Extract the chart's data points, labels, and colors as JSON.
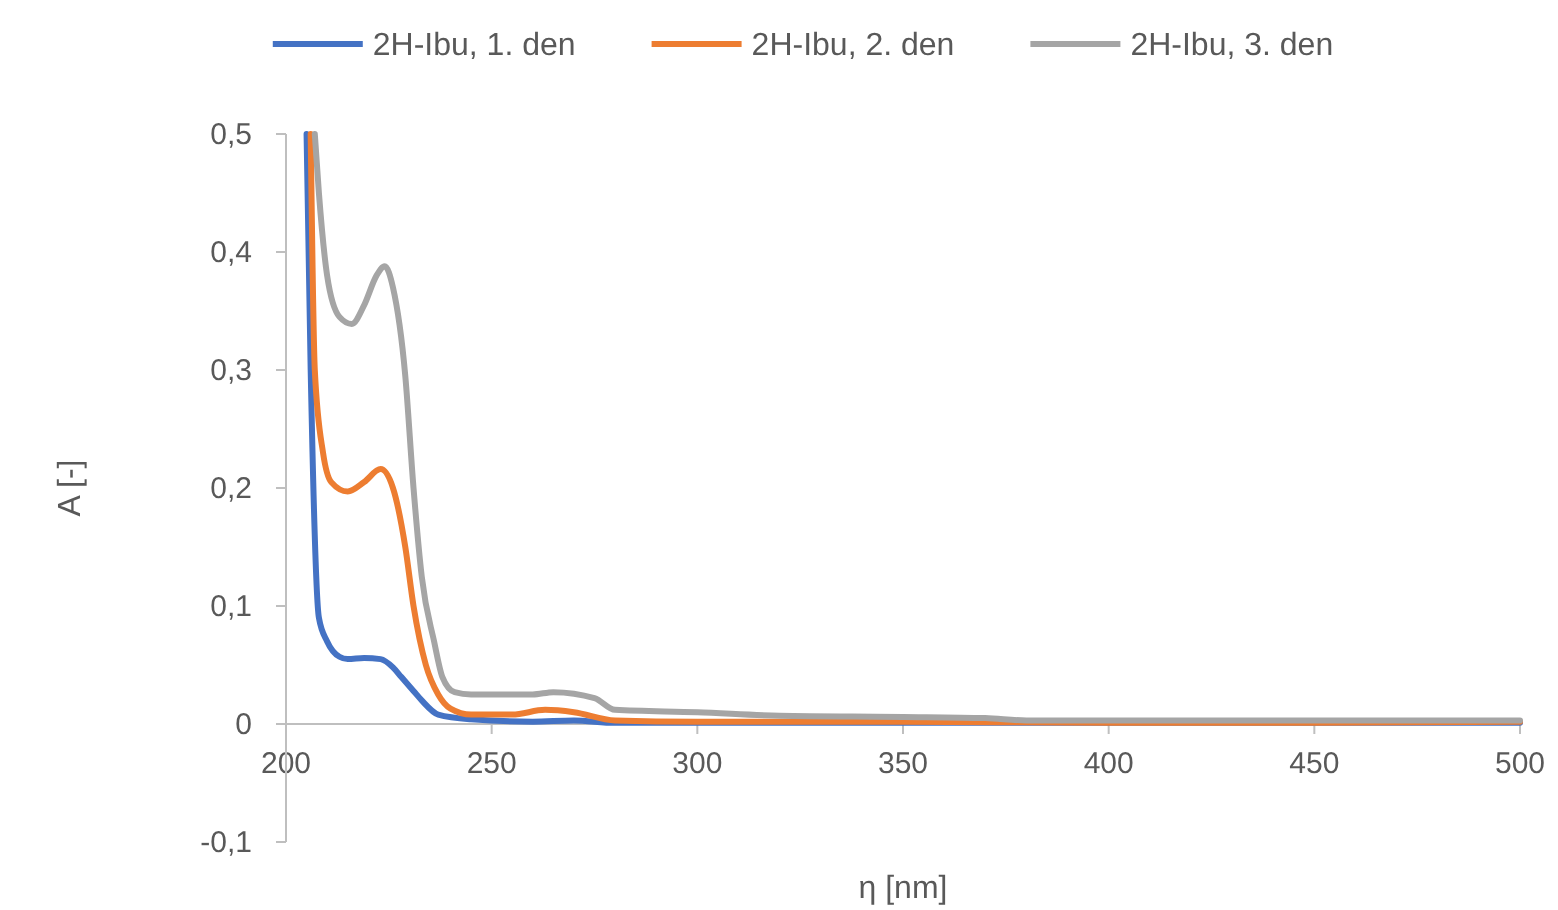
{
  "chart_data": {
    "type": "line",
    "xlabel": "η [nm]",
    "ylabel": "A [-]",
    "legend": "top",
    "grid": false,
    "marker": "none",
    "line_style": "solid",
    "xlim": [
      200,
      500
    ],
    "xticks": [
      200,
      250,
      300,
      350,
      400,
      450,
      500
    ],
    "ylim": [
      -0.1,
      0.5
    ],
    "yticks": [
      {
        "value": -0.1,
        "label": "-0,1"
      },
      {
        "value": 0,
        "label": "0"
      },
      {
        "value": 0.1,
        "label": "0,1"
      },
      {
        "value": 0.2,
        "label": "0,2"
      },
      {
        "value": 0.3,
        "label": "0,3"
      },
      {
        "value": 0.4,
        "label": "0,4"
      },
      {
        "value": 0.5,
        "label": "0,5"
      }
    ],
    "series": [
      {
        "name": "2H-Ibu, 1. den",
        "color": "#4472c4",
        "x": [
          205,
          206,
          208,
          210,
          213,
          215,
          219,
          223,
          226,
          228,
          231,
          233,
          237,
          245,
          260,
          270,
          280,
          300,
          350,
          400,
          450,
          500
        ],
        "values": [
          0.5,
          0.3,
          0.09,
          0.07,
          0.057,
          0.055,
          0.056,
          0.055,
          0.048,
          0.04,
          0.028,
          0.02,
          0.008,
          0.004,
          0.002,
          0.003,
          0.001,
          0.001,
          0.001,
          null,
          null,
          0.001
        ]
      },
      {
        "name": "2H-Ibu, 2. den",
        "color": "#ed7d31",
        "x": [
          206,
          207,
          209,
          211,
          215,
          219,
          223,
          226,
          229,
          231,
          234,
          237,
          240,
          245,
          255,
          263,
          270,
          280,
          300,
          350,
          400,
          450,
          500
        ],
        "values": [
          0.5,
          0.3,
          0.23,
          0.205,
          0.197,
          0.205,
          0.216,
          0.2,
          0.15,
          0.1,
          0.05,
          0.025,
          0.013,
          0.008,
          0.008,
          0.012,
          0.01,
          0.003,
          0.002,
          0.002,
          0.001,
          0.001,
          0.002
        ]
      },
      {
        "name": "2H-Ibu, 3. den",
        "color": "#a5a5a5",
        "x": [
          207,
          208,
          210,
          213,
          216,
          219,
          222,
          224,
          226,
          229,
          231,
          233,
          236,
          238,
          241,
          245,
          260,
          265,
          275,
          280,
          300,
          320,
          350,
          370,
          380,
          400,
          450,
          500
        ],
        "values": [
          0.5,
          0.45,
          0.38,
          0.345,
          0.339,
          0.355,
          0.38,
          0.388,
          0.37,
          0.295,
          0.2,
          0.125,
          0.07,
          0.04,
          0.027,
          0.025,
          0.025,
          0.027,
          0.022,
          0.012,
          0.01,
          0.007,
          0.006,
          0.005,
          0.003,
          0.003,
          0.003,
          0.003
        ]
      }
    ]
  }
}
